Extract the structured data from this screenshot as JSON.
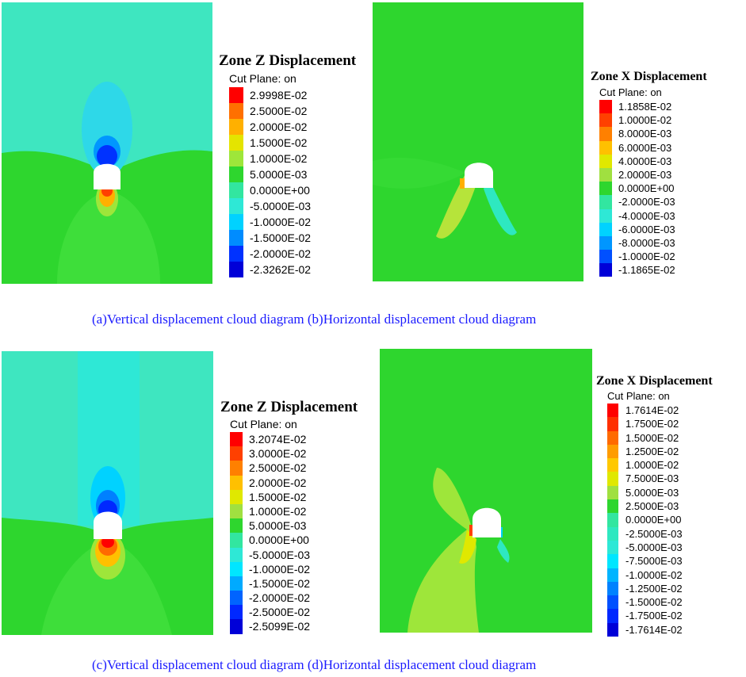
{
  "panels": [
    {
      "id": "a",
      "legend_title": "Zone Z Displacement",
      "cut_plane": "Cut Plane: on",
      "levels": [
        {
          "value": "2.9998E-02",
          "color": "#ff0000"
        },
        {
          "value": "2.5000E-02",
          "color": "#ff7000"
        },
        {
          "value": "2.0000E-02",
          "color": "#ffb000"
        },
        {
          "value": "1.5000E-02",
          "color": "#e4e400"
        },
        {
          "value": "1.0000E-02",
          "color": "#9ee63a"
        },
        {
          "value": "5.0000E-03",
          "color": "#2ed62e"
        },
        {
          "value": "0.0000E+00",
          "color": "#32e6a0"
        },
        {
          "value": "-5.0000E-03",
          "color": "#2ee8d6"
        },
        {
          "value": "-1.0000E-02",
          "color": "#00d2ff"
        },
        {
          "value": "-1.5000E-02",
          "color": "#008cff"
        },
        {
          "value": "-2.0000E-02",
          "color": "#0032ff"
        },
        {
          "value": "-2.3262E-02",
          "color": "#0000d8"
        }
      ]
    },
    {
      "id": "b",
      "legend_title": "Zone X Displacement",
      "cut_plane": "Cut Plane: on",
      "levels": [
        {
          "value": "1.1858E-02",
          "color": "#ff0000"
        },
        {
          "value": "1.0000E-02",
          "color": "#ff4000"
        },
        {
          "value": "8.0000E-03",
          "color": "#ff8000"
        },
        {
          "value": "6.0000E-03",
          "color": "#ffc000"
        },
        {
          "value": "4.0000E-03",
          "color": "#e0e800"
        },
        {
          "value": "2.0000E-03",
          "color": "#a0e040"
        },
        {
          "value": "0.0000E+00",
          "color": "#2ed62e"
        },
        {
          "value": "-2.0000E-03",
          "color": "#32e6a0"
        },
        {
          "value": "-4.0000E-03",
          "color": "#2ee8d6"
        },
        {
          "value": "-6.0000E-03",
          "color": "#00d2ff"
        },
        {
          "value": "-8.0000E-03",
          "color": "#0096ff"
        },
        {
          "value": "-1.0000E-02",
          "color": "#0050ff"
        },
        {
          "value": "-1.1865E-02",
          "color": "#0000d8"
        }
      ]
    },
    {
      "id": "c",
      "legend_title": "Zone Z Displacement",
      "cut_plane": "Cut Plane: on",
      "levels": [
        {
          "value": "3.2074E-02",
          "color": "#ff0000"
        },
        {
          "value": "3.0000E-02",
          "color": "#ff4000"
        },
        {
          "value": "2.5000E-02",
          "color": "#ff8000"
        },
        {
          "value": "2.0000E-02",
          "color": "#ffc000"
        },
        {
          "value": "1.5000E-02",
          "color": "#e0e800"
        },
        {
          "value": "1.0000E-02",
          "color": "#a0e040"
        },
        {
          "value": "5.0000E-03",
          "color": "#2ed62e"
        },
        {
          "value": "0.0000E+00",
          "color": "#32e6a0"
        },
        {
          "value": "-5.0000E-03",
          "color": "#2ee8d6"
        },
        {
          "value": "-1.0000E-02",
          "color": "#00e6ff"
        },
        {
          "value": "-1.5000E-02",
          "color": "#00aaff"
        },
        {
          "value": "-2.0000E-02",
          "color": "#0064ff"
        },
        {
          "value": "-2.5000E-02",
          "color": "#0028ff"
        },
        {
          "value": "-2.5099E-02",
          "color": "#0000d8"
        }
      ]
    },
    {
      "id": "d",
      "legend_title": "Zone X Displacement",
      "cut_plane": "Cut Plane: on",
      "levels": [
        {
          "value": "1.7614E-02",
          "color": "#ff0000"
        },
        {
          "value": "1.7500E-02",
          "color": "#ff3000"
        },
        {
          "value": "1.5000E-02",
          "color": "#ff6a00"
        },
        {
          "value": "1.2500E-02",
          "color": "#ff9c00"
        },
        {
          "value": "1.0000E-02",
          "color": "#ffc800"
        },
        {
          "value": "7.5000E-03",
          "color": "#e0e800"
        },
        {
          "value": "5.0000E-03",
          "color": "#a0e040"
        },
        {
          "value": "2.5000E-03",
          "color": "#2ed62e"
        },
        {
          "value": "0.0000E+00",
          "color": "#32e6a0"
        },
        {
          "value": "-2.5000E-03",
          "color": "#2ee8c0"
        },
        {
          "value": "-5.0000E-03",
          "color": "#2ee8d6"
        },
        {
          "value": "-7.5000E-03",
          "color": "#00e6ff"
        },
        {
          "value": "-1.0000E-02",
          "color": "#00b4ff"
        },
        {
          "value": "-1.2500E-02",
          "color": "#0082ff"
        },
        {
          "value": "-1.5000E-02",
          "color": "#0050ff"
        },
        {
          "value": "-1.7500E-02",
          "color": "#0028ff"
        },
        {
          "value": "-1.7614E-02",
          "color": "#0000d8"
        }
      ]
    }
  ],
  "captions": {
    "top": "(a)Vertical displacement cloud diagram (b)Horizontal displacement cloud diagram",
    "bottom": "(c)Vertical displacement cloud diagram (d)Horizontal displacement cloud diagram"
  }
}
